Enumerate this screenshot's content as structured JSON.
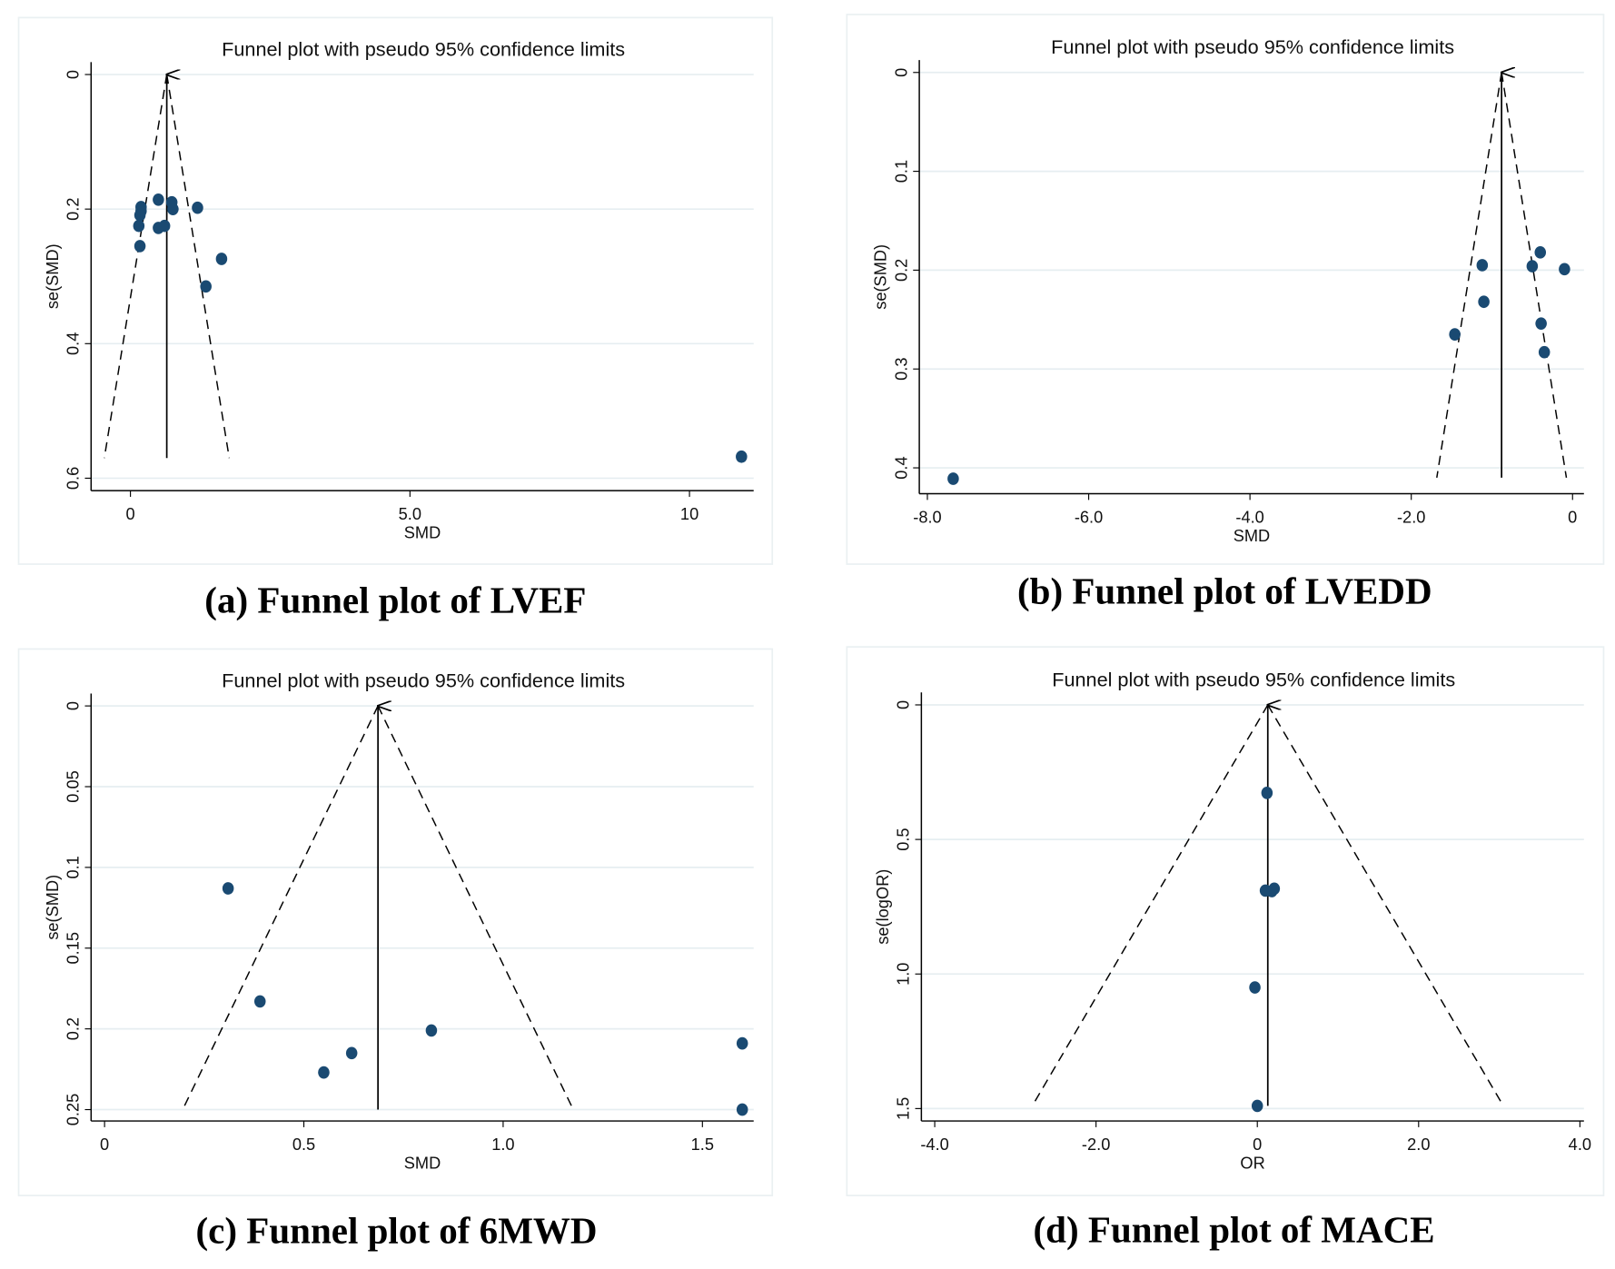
{
  "chart_data": [
    {
      "type": "scatter",
      "title": "Funnel plot with pseudo 95% confidence limits",
      "caption": "(a) Funnel plot of LVEF",
      "xlabel": "SMD",
      "ylabel": "se(SMD)",
      "y_reversed": true,
      "grid": true,
      "xticks": [
        0,
        5,
        10
      ],
      "xtick_labels": [
        "0",
        "5.0",
        "10"
      ],
      "yticks": [
        0,
        0.2,
        0.4,
        0.6
      ],
      "ytick_labels": [
        "0",
        "0.2",
        "0.4",
        "0.6"
      ],
      "xlim": [
        -0.7,
        11.2
      ],
      "ylim": [
        0,
        0.6
      ],
      "funnel": {
        "pooled": 0.65,
        "se_max": 0.57
      },
      "marker_color": "#1a4a72",
      "points": [
        {
          "x": 0.19,
          "y": 0.197
        },
        {
          "x": 0.19,
          "y": 0.203
        },
        {
          "x": 0.17,
          "y": 0.209
        },
        {
          "x": 0.15,
          "y": 0.225
        },
        {
          "x": 0.17,
          "y": 0.255
        },
        {
          "x": 0.5,
          "y": 0.186
        },
        {
          "x": 0.74,
          "y": 0.19
        },
        {
          "x": 0.76,
          "y": 0.2
        },
        {
          "x": 0.5,
          "y": 0.228
        },
        {
          "x": 0.61,
          "y": 0.225
        },
        {
          "x": 1.2,
          "y": 0.198
        },
        {
          "x": 1.63,
          "y": 0.274
        },
        {
          "x": 1.35,
          "y": 0.315
        },
        {
          "x": 10.93,
          "y": 0.568
        }
      ]
    },
    {
      "type": "scatter",
      "title": "Funnel plot with pseudo 95% confidence limits",
      "caption": "(b) Funnel plot of LVEDD",
      "xlabel": "SMD",
      "ylabel": "se(SMD)",
      "y_reversed": true,
      "grid": true,
      "xticks": [
        -8,
        -6,
        -4,
        -2,
        0
      ],
      "xtick_labels": [
        "-8.0",
        "-6.0",
        "-4.0",
        "-2.0",
        "0"
      ],
      "yticks": [
        0,
        0.1,
        0.2,
        0.3,
        0.4
      ],
      "ytick_labels": [
        "0",
        "0.1",
        "0.2",
        "0.3",
        "0.4"
      ],
      "xlim": [
        -8.1,
        0.15
      ],
      "ylim": [
        0,
        0.42
      ],
      "funnel": {
        "pooled": -0.88,
        "se_max": 0.41
      },
      "marker_color": "#1a4a72",
      "points": [
        {
          "x": -7.68,
          "y": 0.411
        },
        {
          "x": -1.12,
          "y": 0.195
        },
        {
          "x": -1.1,
          "y": 0.232
        },
        {
          "x": -1.46,
          "y": 0.265
        },
        {
          "x": -0.4,
          "y": 0.182
        },
        {
          "x": -0.5,
          "y": 0.196
        },
        {
          "x": -0.1,
          "y": 0.199
        },
        {
          "x": -0.39,
          "y": 0.254
        },
        {
          "x": -0.35,
          "y": 0.283
        }
      ]
    },
    {
      "type": "scatter",
      "title": "Funnel plot with pseudo 95% confidence limits",
      "caption": "(c) Funnel plot of 6MWD",
      "xlabel": "SMD",
      "ylabel": "se(SMD)",
      "y_reversed": true,
      "grid": true,
      "xticks": [
        0,
        0.5,
        1.0,
        1.5
      ],
      "xtick_labels": [
        "0",
        "0.5",
        "1.0",
        "1.5"
      ],
      "yticks": [
        0,
        0.05,
        0.1,
        0.15,
        0.2,
        0.25
      ],
      "ytick_labels": [
        "0",
        "0.05",
        "0.1",
        "0.15",
        "0.2",
        "0.25"
      ],
      "xlim": [
        -0.03,
        1.63
      ],
      "ylim": [
        0,
        0.258
      ],
      "funnel": {
        "pooled": 0.686,
        "se_max": 0.25
      },
      "marker_color": "#1a4a72",
      "points": [
        {
          "x": 0.31,
          "y": 0.113
        },
        {
          "x": 0.39,
          "y": 0.183
        },
        {
          "x": 0.55,
          "y": 0.227
        },
        {
          "x": 0.62,
          "y": 0.215
        },
        {
          "x": 0.82,
          "y": 0.201
        },
        {
          "x": 1.6,
          "y": 0.209
        },
        {
          "x": 1.6,
          "y": 0.25
        }
      ]
    },
    {
      "type": "scatter",
      "title": "Funnel plot with pseudo 95% confidence limits",
      "caption": "(d) Funnel plot of MACE",
      "xlabel": "OR",
      "ylabel": "se(logOR)",
      "y_reversed": true,
      "grid": true,
      "xticks": [
        -4,
        -2,
        0,
        2,
        4
      ],
      "xtick_labels": [
        "-4.0",
        "-2.0",
        "0",
        "2.0",
        "4.0"
      ],
      "yticks": [
        0,
        0.5,
        1.0,
        1.5
      ],
      "ytick_labels": [
        "0",
        "0.5",
        "1.0",
        "1.5"
      ],
      "xlim": [
        -4.2,
        4.1
      ],
      "ylim": [
        0,
        1.55
      ],
      "funnel": {
        "pooled": 0.13,
        "se_max": 1.49
      },
      "marker_color": "#1a4a72",
      "points": [
        {
          "x": 0.12,
          "y": 0.327
        },
        {
          "x": 0.1,
          "y": 0.69
        },
        {
          "x": 0.18,
          "y": 0.692
        },
        {
          "x": 0.21,
          "y": 0.683
        },
        {
          "x": -0.03,
          "y": 1.05
        },
        {
          "x": 0.0,
          "y": 1.49
        }
      ]
    }
  ]
}
